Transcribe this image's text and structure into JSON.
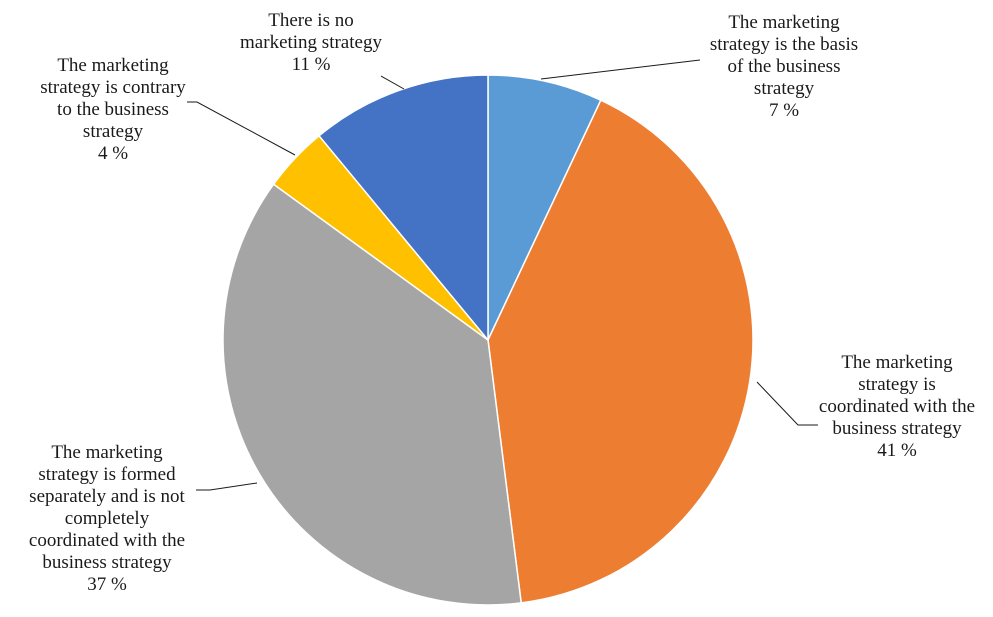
{
  "chart_data": {
    "type": "pie",
    "title": "",
    "start_angle_deg": 0,
    "direction": "clockwise",
    "slices": [
      {
        "label_lines": [
          "The marketing",
          "strategy is the basis",
          "of the business",
          "strategy"
        ],
        "value_text": "7 %",
        "value": 7,
        "color": "#5b9bd5"
      },
      {
        "label_lines": [
          "The marketing",
          "strategy is",
          "coordinated with the",
          "business strategy"
        ],
        "value_text": "41 %",
        "value": 41,
        "color": "#ed7d31"
      },
      {
        "label_lines": [
          "The marketing",
          "strategy is formed",
          "separately and is not",
          "completely",
          "coordinated with the",
          "business strategy"
        ],
        "value_text": "37 %",
        "value": 37,
        "color": "#a5a5a5"
      },
      {
        "label_lines": [
          "The marketing",
          "strategy is contrary",
          "to the business",
          "strategy"
        ],
        "value_text": "4 %",
        "value": 4,
        "color": "#ffc000"
      },
      {
        "label_lines": [
          "There is no",
          "marketing strategy"
        ],
        "value_text": "11 %",
        "value": 11,
        "color": "#4472c4"
      }
    ]
  }
}
